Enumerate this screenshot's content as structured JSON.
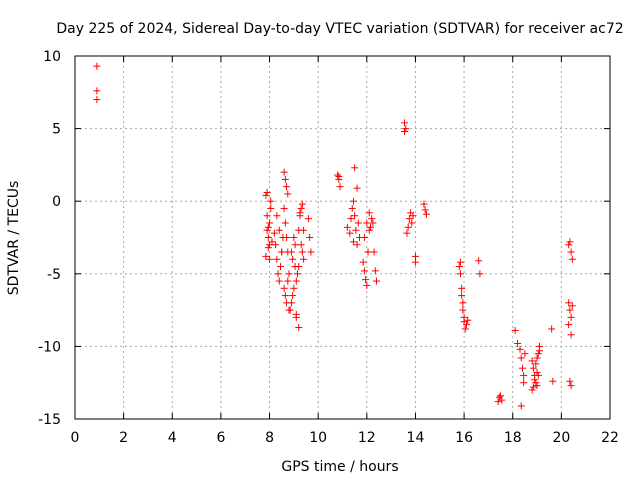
{
  "chart_data": {
    "type": "scatter",
    "title": "Day 225 of 2024, Sidereal Day-to-day VTEC variation (SDTVAR) for receiver ac72",
    "xlabel": "GPS time / hours",
    "ylabel": "SDTVAR / TECUs",
    "xlim": [
      0,
      22
    ],
    "ylim": [
      -15,
      10
    ],
    "xticks": [
      "0",
      "2",
      "4",
      "6",
      "8",
      "10",
      "12",
      "14",
      "16",
      "18",
      "20",
      "22"
    ],
    "yticks": [
      "-15",
      "-10",
      "-5",
      "0",
      "5",
      "10"
    ],
    "grid": true,
    "marker": "+",
    "color": "#ff0000",
    "series": [
      {
        "name": "SDTVAR",
        "x": [
          0.9,
          0.9,
          0.9,
          7.85,
          7.9,
          7.95,
          8.0,
          8.05,
          7.9,
          7.95,
          8.0,
          8.05,
          8.1,
          7.85,
          7.9,
          7.95,
          8.0,
          8.2,
          8.25,
          8.3,
          8.35,
          8.4,
          8.45,
          8.5,
          8.55,
          8.3,
          8.4,
          8.5,
          8.6,
          8.65,
          8.7,
          8.75,
          8.6,
          8.65,
          8.7,
          8.75,
          8.8,
          8.6,
          8.7,
          8.8,
          8.65,
          8.75,
          8.85,
          8.9,
          8.95,
          9.0,
          9.05,
          9.1,
          8.9,
          9.0,
          9.1,
          8.95,
          9.05,
          9.15,
          9.2,
          9.25,
          9.3,
          9.35,
          9.4,
          9.2,
          9.3,
          9.4,
          9.25,
          9.35,
          9.1,
          9.2,
          9.6,
          9.65,
          9.7,
          10.8,
          10.85,
          10.9,
          10.85,
          11.2,
          11.3,
          11.35,
          11.4,
          11.45,
          11.5,
          11.55,
          11.6,
          11.65,
          11.7,
          11.5,
          11.6,
          11.45,
          11.85,
          11.9,
          11.95,
          12.0,
          12.05,
          11.9,
          12.0,
          12.1,
          12.15,
          12.2,
          12.25,
          12.3,
          12.35,
          12.4,
          12.1,
          13.55,
          13.6,
          13.55,
          13.65,
          13.7,
          13.75,
          13.8,
          13.85,
          13.9,
          14.0,
          14.0,
          14.35,
          14.4,
          14.45,
          15.8,
          15.85,
          15.9,
          15.95,
          16.0,
          16.05,
          15.85,
          15.9,
          15.95,
          16.0,
          16.1,
          16.15,
          16.6,
          16.65,
          17.4,
          17.45,
          17.5,
          17.55,
          18.1,
          18.2,
          18.3,
          18.35,
          18.4,
          18.45,
          18.35,
          18.5,
          18.45,
          18.8,
          18.85,
          18.9,
          18.95,
          19.0,
          19.05,
          19.1,
          18.85,
          18.9,
          18.95,
          19.0,
          19.05,
          18.8,
          19.0,
          19.1,
          19.6,
          19.65,
          20.3,
          20.35,
          20.4,
          20.45,
          20.3,
          20.35,
          20.4,
          20.3,
          20.4,
          20.45,
          20.35,
          20.4
        ],
        "y": [
          9.3,
          7.6,
          7.0,
          0.4,
          -1.0,
          -2.5,
          -4.0,
          0.0,
          -2.0,
          -3.2,
          -1.5,
          -0.5,
          -2.8,
          -3.8,
          0.6,
          -1.8,
          -3.0,
          -2.2,
          -3.0,
          -4.0,
          -5.0,
          -5.5,
          -4.5,
          -3.5,
          -2.5,
          -1.0,
          -2.0,
          -3.5,
          2.0,
          1.5,
          1.0,
          0.5,
          -0.5,
          -1.5,
          -2.5,
          -3.5,
          -5.0,
          -6.0,
          -7.0,
          -7.5,
          -6.5,
          -5.5,
          -7.5,
          -7.0,
          -6.5,
          -6.0,
          -4.5,
          -8.0,
          -3.5,
          -2.5,
          -5.5,
          -4.0,
          -3.0,
          -5.0,
          -2.0,
          -1.0,
          -0.5,
          -3.5,
          -4.0,
          -4.5,
          -3.0,
          -2.0,
          -0.8,
          -0.2,
          -7.8,
          -8.7,
          -1.2,
          -2.5,
          -3.5,
          1.8,
          1.5,
          1.0,
          1.7,
          -1.8,
          -2.2,
          -1.2,
          -0.5,
          0.0,
          -1.0,
          -2.0,
          -3.0,
          -1.5,
          -2.5,
          2.3,
          0.9,
          -2.8,
          -4.2,
          -4.8,
          -5.4,
          -5.8,
          -3.5,
          -2.5,
          -1.5,
          -2.0,
          -1.8,
          -1.2,
          -1.5,
          -3.5,
          -4.8,
          -5.5,
          -0.8,
          5.4,
          5.0,
          4.8,
          -2.2,
          -1.8,
          -1.2,
          -0.8,
          -1.5,
          -1.0,
          -3.8,
          -4.2,
          -0.2,
          -0.6,
          -0.9,
          -4.5,
          -5.0,
          -6.5,
          -7.5,
          -8.3,
          -8.8,
          -4.2,
          -6.0,
          -7.0,
          -8.0,
          -8.5,
          -8.2,
          -4.1,
          -5.0,
          -13.8,
          -13.5,
          -13.4,
          -13.7,
          -8.9,
          -9.8,
          -10.2,
          -10.8,
          -11.5,
          -12.0,
          -14.1,
          -10.5,
          -12.5,
          -11.0,
          -11.5,
          -12.0,
          -12.5,
          -11.8,
          -10.5,
          -10.0,
          -12.8,
          -12.3,
          -11.2,
          -10.8,
          -12.0,
          -13.0,
          -12.7,
          -10.3,
          -8.8,
          -12.4,
          -3.0,
          -2.8,
          -3.5,
          -4.0,
          -7.0,
          -7.5,
          -8.0,
          -8.5,
          -9.2,
          -7.2,
          -12.4,
          -12.7
        ]
      }
    ]
  }
}
